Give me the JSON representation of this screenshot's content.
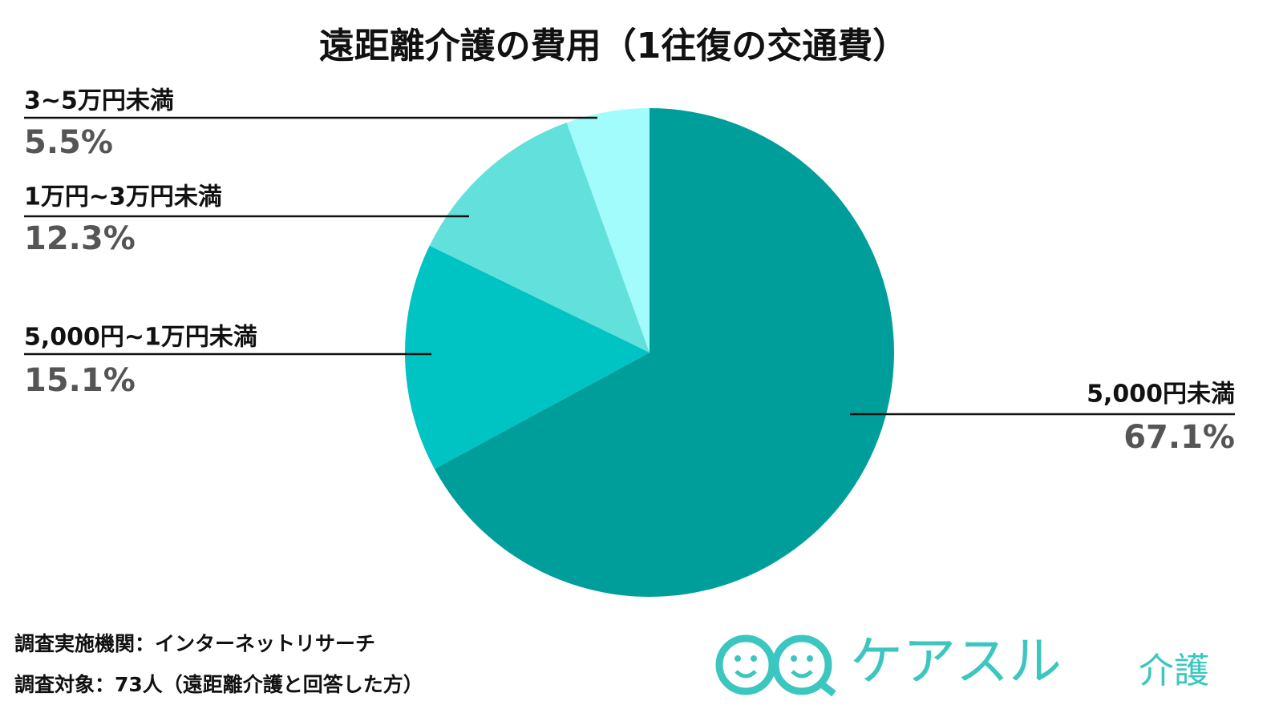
{
  "chart_data": {
    "type": "pie",
    "title": "遠距離介護の費用（1往復の交通費）",
    "categories": [
      "5,000円未満",
      "5,000円~1万円未満",
      "1万円~3万円未満",
      "3~5万円未満"
    ],
    "values": [
      67.1,
      15.1,
      12.3,
      5.5
    ],
    "value_labels": [
      "67.1%",
      "15.1%",
      "12.3%",
      "5.5%"
    ],
    "colors": [
      "#009e9a",
      "#00c4c4",
      "#62e0dc",
      "#a2fcfc"
    ],
    "notes": [
      "調査実施機関：インターネットリサーチ",
      "調査対象：73人（遠距離介護と回答した方）"
    ]
  },
  "logo": {
    "name": "ケアスル",
    "sub": "介護"
  }
}
